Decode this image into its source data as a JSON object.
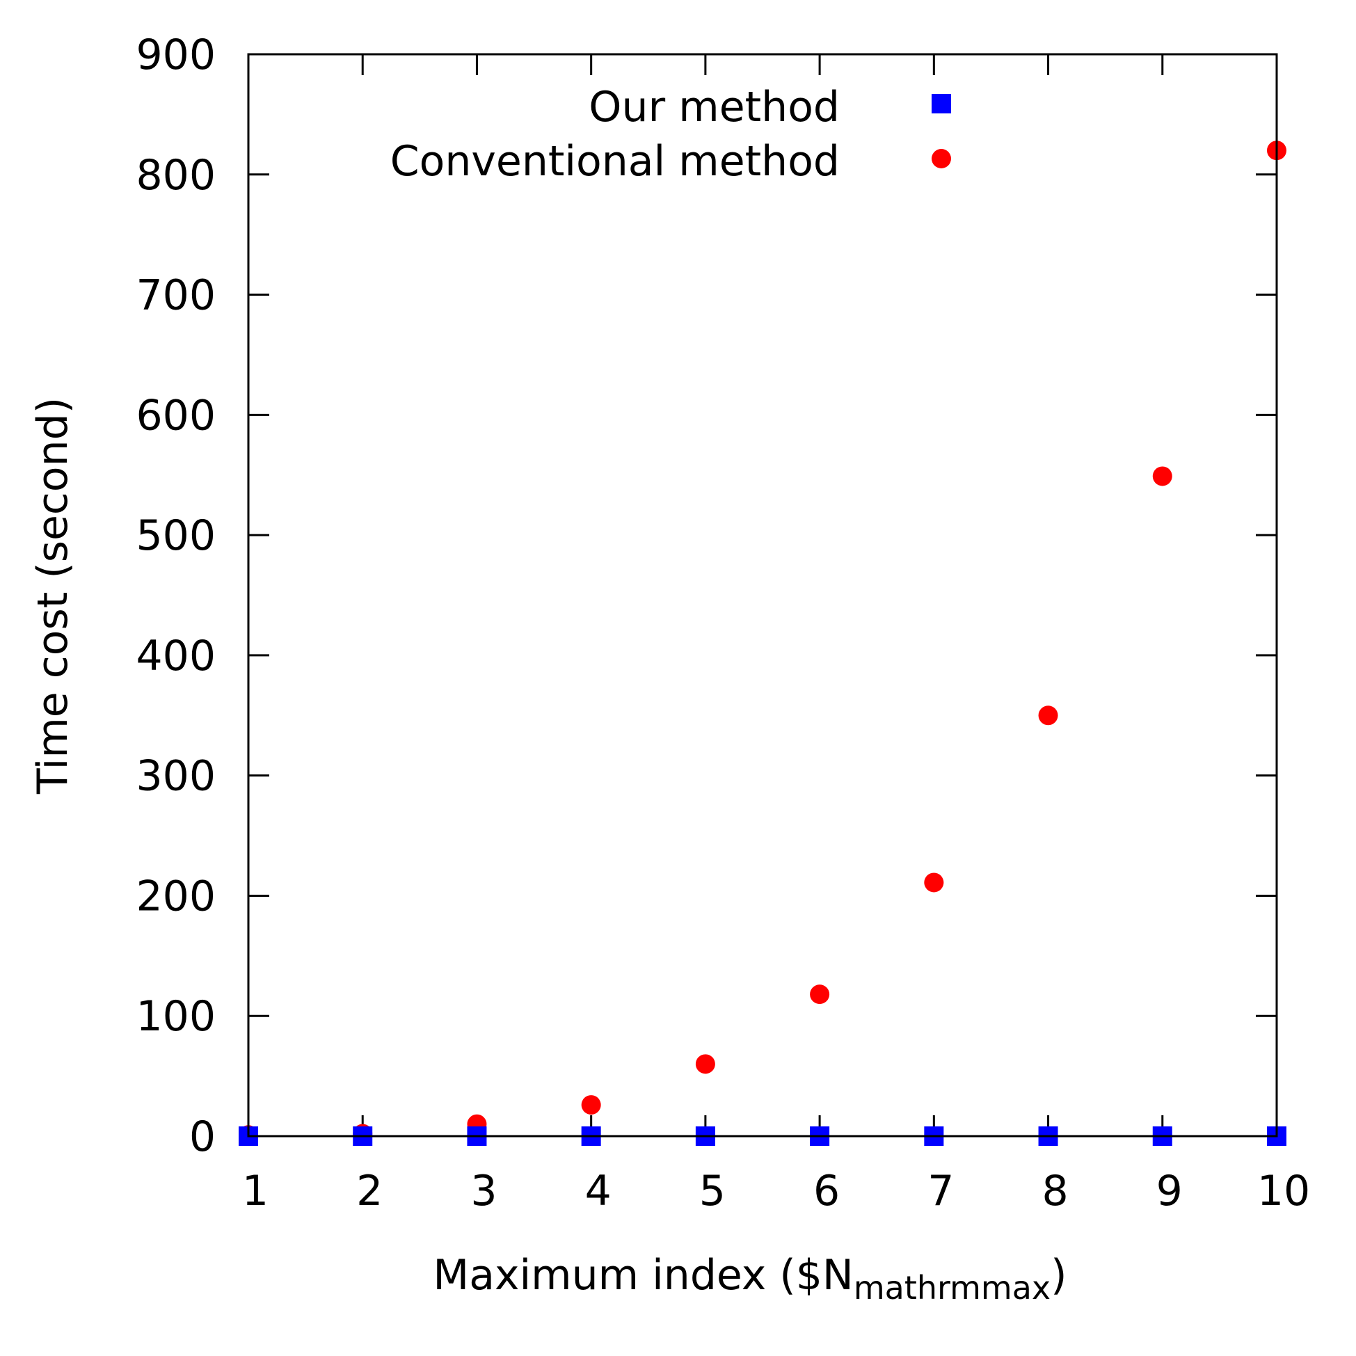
{
  "chart_data": {
    "type": "scatter",
    "xlabel": {
      "main": "Maximum index ($N",
      "sub": "mathrmmax",
      "tail": ")"
    },
    "ylabel": "Time cost (second)",
    "xlim": [
      1,
      10
    ],
    "ylim": [
      0,
      900
    ],
    "xticks": [
      1,
      2,
      3,
      4,
      5,
      6,
      7,
      8,
      9,
      10
    ],
    "yticks": [
      0,
      100,
      200,
      300,
      400,
      500,
      600,
      700,
      800,
      900
    ],
    "x": [
      1,
      2,
      3,
      4,
      5,
      6,
      7,
      8,
      9,
      10
    ],
    "series": [
      {
        "name": "Our method",
        "marker": "square",
        "color": "#0000ff",
        "values": [
          0,
          0,
          0,
          0,
          0,
          0,
          0,
          0,
          0,
          0
        ]
      },
      {
        "name": "Conventional method",
        "marker": "circle",
        "color": "#ff0000",
        "values": [
          1,
          2,
          10,
          26,
          60,
          118,
          211,
          350,
          549,
          820
        ]
      }
    ],
    "legend_position": "top-right",
    "grid": false
  }
}
